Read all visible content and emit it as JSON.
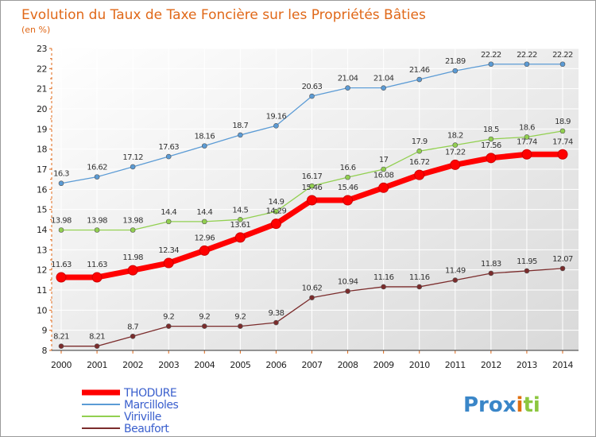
{
  "chart_data": {
    "type": "line",
    "title": "Evolution du Taux de Taxe Foncière sur les Propriétés Bâties",
    "subtitle": "(en %)",
    "xlabel": "",
    "ylabel": "",
    "x": [
      "2000",
      "2001",
      "2002",
      "2003",
      "2004",
      "2005",
      "2006",
      "2007",
      "2008",
      "2009",
      "2010",
      "2011",
      "2012",
      "2013",
      "2014"
    ],
    "ylim": [
      8,
      23
    ],
    "yticks": [
      "8",
      "9",
      "10",
      "11",
      "12",
      "13",
      "14",
      "15",
      "16",
      "17",
      "18",
      "19",
      "20",
      "21",
      "22",
      "23"
    ],
    "grid": true,
    "legend": "bottom-left",
    "series": [
      {
        "name": "THODURE",
        "color": "#ff0000",
        "values": [
          11.63,
          11.63,
          11.98,
          12.34,
          12.96,
          13.61,
          14.29,
          15.46,
          15.46,
          16.08,
          16.72,
          17.22,
          17.56,
          17.74,
          17.74
        ],
        "labels": [
          "11.63",
          "11.63",
          "11.98",
          "12.34",
          "12.96",
          "13.61",
          "14.29",
          "15.46",
          "15.46",
          "16.08",
          "16.72",
          "17.22",
          "17.56",
          "17.74",
          "17.74"
        ]
      },
      {
        "name": "Marcilloles",
        "color": "#5b9bd5",
        "values": [
          16.3,
          16.62,
          17.12,
          17.63,
          18.16,
          18.7,
          19.16,
          20.63,
          21.04,
          21.04,
          21.46,
          21.89,
          22.22,
          22.22,
          22.22
        ],
        "labels": [
          "16.3",
          "16.62",
          "17.12",
          "17.63",
          "18.16",
          "18.7",
          "19.16",
          "20.63",
          "21.04",
          "21.04",
          "21.46",
          "21.89",
          "22.22",
          "22.22",
          "22.22"
        ]
      },
      {
        "name": "Viriville",
        "color": "#92d050",
        "values": [
          13.98,
          13.98,
          13.98,
          14.4,
          14.4,
          14.5,
          14.9,
          16.17,
          16.6,
          17,
          17.9,
          18.2,
          18.5,
          18.6,
          18.9
        ],
        "labels": [
          "13.98",
          "13.98",
          "13.98",
          "14.4",
          "14.4",
          "14.5",
          "14.9",
          "16.17",
          "16.6",
          "17",
          "17.9",
          "18.2",
          "18.5",
          "18.6",
          "18.9"
        ]
      },
      {
        "name": "Beaufort",
        "color": "#7b2c2c",
        "values": [
          8.21,
          8.21,
          8.7,
          9.2,
          9.2,
          9.2,
          9.38,
          10.62,
          10.94,
          11.16,
          11.16,
          11.49,
          11.83,
          11.95,
          12.07
        ],
        "labels": [
          "8.21",
          "8.21",
          "8.7",
          "9.2",
          "9.2",
          "9.2",
          "9.38",
          "10.62",
          "10.94",
          "11.16",
          "11.16",
          "11.49",
          "11.83",
          "11.95",
          "12.07"
        ]
      }
    ]
  },
  "logo": {
    "text": "Prox",
    "mid": "i",
    "tail": "ti"
  }
}
